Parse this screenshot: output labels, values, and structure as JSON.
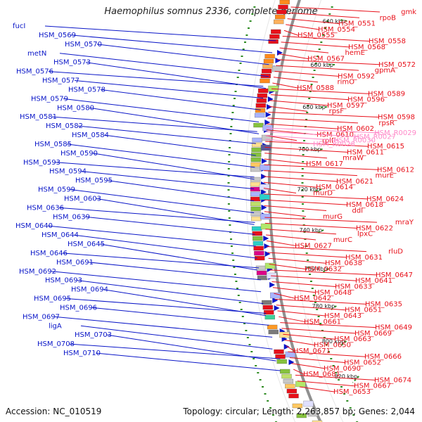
{
  "title": "Haemophilus somnus 2336, complete genome",
  "footer": {
    "accession": "Accession: NC_010519",
    "summary": "Topology: circular; Length: 2,263,857 bp; Genes: 2,044"
  },
  "colors": {
    "forward_label": "#0a16c8",
    "reverse_label": "#e8101a",
    "rrna_label": "#ff88c8",
    "backbone": "#909090",
    "tick": "#2e8b22"
  },
  "kbp_labels": [
    "640 kbp",
    "660 kbp",
    "680 kbp",
    "700 kbp",
    "720 kbp",
    "740 kbp",
    "760 kbp",
    "780 kbp",
    "800 kbp",
    "820 kbp"
  ],
  "forward_genes": [
    "fucI",
    "HSM_0569",
    "HSM_0570",
    "metN",
    "HSM_0573",
    "HSM_0576",
    "HSM_0577",
    "HSM_0578",
    "HSM_0579",
    "HSM_0580",
    "HSM_0581",
    "HSM_0582",
    "HSM_0584",
    "HSM_0585",
    "HSM_0590",
    "HSM_0593",
    "HSM_0594",
    "HSM_0595",
    "HSM_0599",
    "HSM_0603",
    "HSM_0636",
    "HSM_0639",
    "HSM_0640",
    "HSM_0644",
    "HSM_0645",
    "HSM_0646",
    "HSM_0691",
    "HSM_0692",
    "HSM_0693",
    "HSM_0694",
    "HSM_0695",
    "HSM_0696",
    "HSM_0697",
    "ligA",
    "HSM_0703",
    "HSM_0708",
    "HSM_0710"
  ],
  "reverse_genes": [
    "gmk",
    "rpoB",
    "HSM_0551",
    "HSM_0554",
    "HSM_0555",
    "HSM_0558",
    "HSM_0568",
    "hemE",
    "HSM_0567",
    "HSM_0572",
    "gpmA",
    "HSM_0592",
    "rimO",
    "HSM_0588",
    "HSM_0589",
    "HSM_0596",
    "HSM_0597",
    "rpsF",
    "HSM_0598",
    "rpsR",
    "HSM_0602",
    "HSM_0610",
    "rplI",
    "HSM_0615",
    "HSM_0611",
    "mraW",
    "HSM_0617",
    "HSM_0612",
    "murE",
    "HSM_0621",
    "HSM_0614",
    "murD",
    "HSM_0624",
    "HSM_0618",
    "ddl",
    "murG",
    "mraY",
    "HSM_0622",
    "lpxC",
    "murC",
    "HSM_0627",
    "rluD",
    "HSM_0631",
    "HSM_0638",
    "HSM_0632",
    "HSM_0647",
    "HSM_0641",
    "HSM_0633",
    "HSM_0648",
    "HSM_0642",
    "HSM_0635",
    "HSM_0651",
    "HSM_0643",
    "HSM_0661",
    "HSM_0649",
    "HSM_0669",
    "HSM_0663",
    "HSM_0650",
    "HSM_0671",
    "HSM_0666",
    "HSM_0652",
    "HSM_0690",
    "HSM_0681",
    "HSM_0674",
    "HSM_0667",
    "HSM_0653"
  ],
  "rrna_genes": [
    "HSM_R0029",
    "HSM_R0027",
    "HSM_R0030",
    "HSM_R0028"
  ]
}
